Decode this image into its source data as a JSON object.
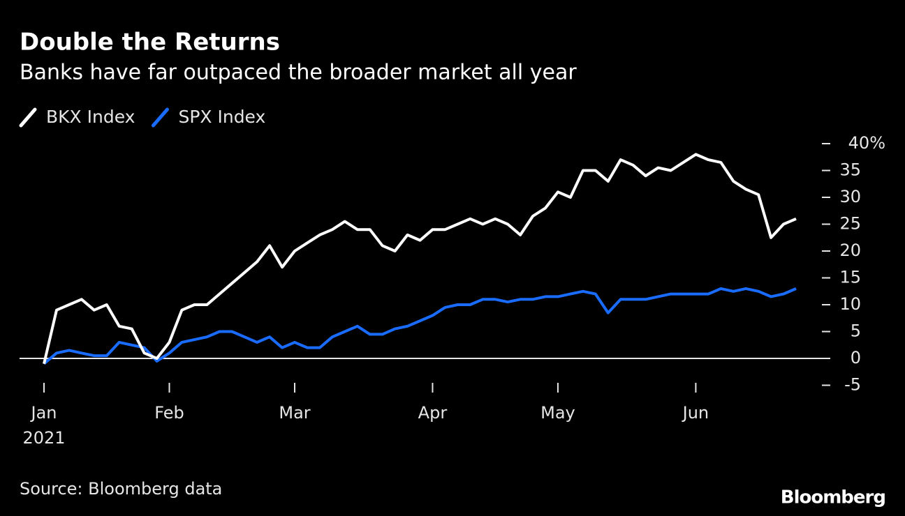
{
  "chart_data": {
    "type": "line",
    "title": "Double the Returns",
    "subtitle": "Banks have far outpaced the broader market all year",
    "categories": [
      "Jan",
      null,
      null,
      null,
      null,
      null,
      null,
      null,
      null,
      null,
      "Feb",
      null,
      null,
      null,
      null,
      null,
      null,
      null,
      null,
      null,
      "Mar",
      null,
      null,
      null,
      null,
      null,
      null,
      null,
      null,
      null,
      null,
      "Apr",
      null,
      null,
      null,
      null,
      null,
      null,
      null,
      null,
      null,
      "May",
      null,
      null,
      null,
      null,
      null,
      null,
      null,
      null,
      null,
      null,
      "Jun",
      null,
      null,
      null,
      null,
      null,
      null,
      null,
      null
    ],
    "year_label": "2021",
    "series": [
      {
        "name": "BKX Index",
        "color": "#ffffff",
        "values": [
          -1,
          9,
          10,
          11,
          9,
          10,
          6,
          5.5,
          1,
          0,
          3,
          9,
          10,
          10,
          12,
          14,
          16,
          18,
          21,
          17,
          20,
          21.5,
          23,
          24,
          25.5,
          24,
          24,
          21,
          20,
          23,
          22,
          24,
          24,
          25,
          26,
          25,
          26,
          25,
          23,
          26.5,
          28,
          31,
          30,
          35,
          35,
          33,
          37,
          36,
          34,
          35.5,
          35,
          36.5,
          38,
          37,
          36.5,
          33,
          31.5,
          30.5,
          22.5,
          25,
          26
        ]
      },
      {
        "name": "SPX Index",
        "color": "#1a6cff",
        "values": [
          -1,
          1,
          1.5,
          1,
          0.5,
          0.5,
          3,
          2.5,
          2,
          -0.5,
          1,
          3,
          3.5,
          4,
          5,
          5,
          4,
          3,
          4,
          2,
          3,
          2,
          2,
          4,
          5,
          6,
          4.5,
          4.5,
          5.5,
          6,
          7,
          8,
          9.5,
          10,
          10,
          11,
          11,
          10.5,
          11,
          11,
          11.5,
          11.5,
          12,
          12.5,
          12,
          8.5,
          11,
          11,
          11,
          11.5,
          12,
          12,
          12,
          12,
          13,
          12.5,
          13,
          12.5,
          11.5,
          12,
          13
        ]
      }
    ],
    "ylim": [
      -5,
      40
    ],
    "yticks": [
      -5,
      0,
      5,
      10,
      15,
      20,
      25,
      30,
      35,
      {
        "value": 40,
        "label": "40%"
      }
    ],
    "zero_line": true,
    "legend": "top-left",
    "source": "Source: Bloomberg data",
    "brand": "Bloomberg"
  }
}
